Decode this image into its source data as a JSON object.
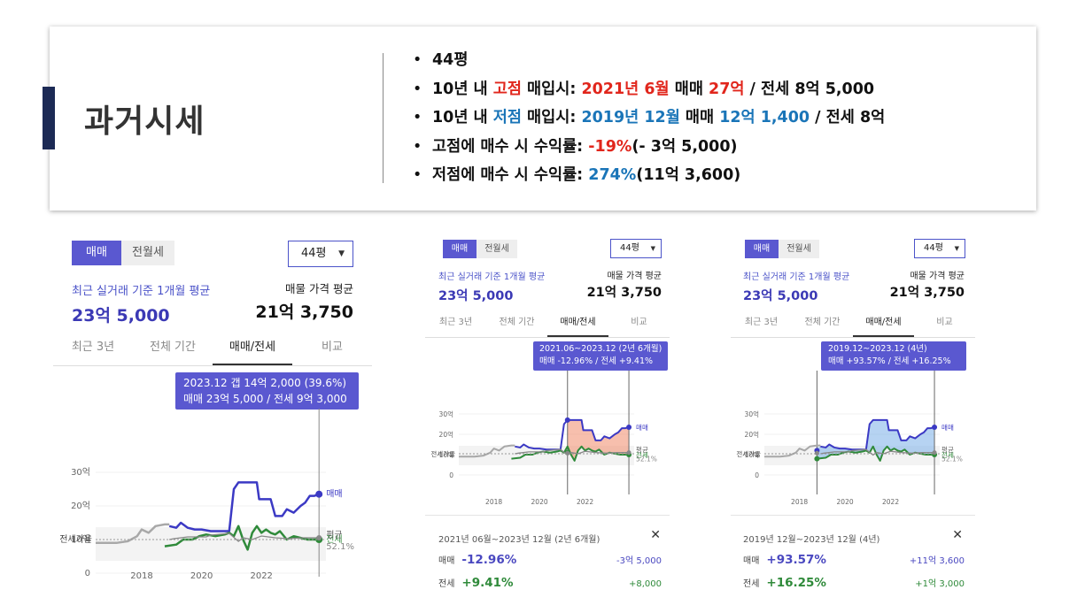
{
  "header": {
    "title": "과거시세",
    "bullets": {
      "b1": "44평",
      "b2": {
        "a": "10년 내 ",
        "b": "고점",
        "c": " 매입시: ",
        "d": "2021년 6월",
        "e": " 매매 ",
        "f": "27억",
        "g": " / 전세 8억 5,000"
      },
      "b3": {
        "a": "10년 내 ",
        "b": "저점",
        "c": " 매입시: ",
        "d": "2019년 12월",
        "e": " 매매 ",
        "f": "12억 1,400",
        "g": " / 전세 8억"
      },
      "b4": {
        "a": "고점에 매수 시 수익률: ",
        "b": "-19%",
        "c": "(- 3억 5,000)"
      },
      "b5": {
        "a": "저점에 매수 시 수익률: ",
        "b": "274%",
        "c": "(11억 3,600)"
      }
    }
  },
  "panels": [
    {
      "toggle": [
        "매매",
        "전월세"
      ],
      "dropdown": "44평",
      "recent_label": "최근 실거래 기준 1개월 평균",
      "recent_value": "23억 5,000",
      "listing_label": "매물 가격 평균",
      "listing_value": "21억 3,750",
      "tabs": [
        "최근 3년",
        "전체 기간",
        "매매/전세",
        "비교"
      ],
      "tooltip": {
        "line1": "2023.12  갭 14억 2,000 (39.6%)",
        "line2": "매매 23억 5,000 / 전세 9억 3,000"
      },
      "chart": {
        "y_ticks": [
          "30억",
          "20억",
          "10억",
          "0"
        ],
        "x_ticks": [
          "2018",
          "2020",
          "2022"
        ],
        "label_sale": "매매",
        "label_jeonse": "전세",
        "ratio_label": "전세가율",
        "avg_label": "평균",
        "avg_value": "52.1%"
      }
    },
    {
      "toggle": [
        "매매",
        "전월세"
      ],
      "dropdown": "44평",
      "recent_label": "최근 실거래 기준 1개월 평균",
      "recent_value": "23억 5,000",
      "listing_label": "매물 가격 평균",
      "listing_value": "21억 3,750",
      "tabs": [
        "최근 3년",
        "전체 기간",
        "매매/전세",
        "비교"
      ],
      "tooltip": {
        "line1": "2021.06~2023.12 (2년 6개월)",
        "line2": "매매 -12.96%  /  전세 +9.41%"
      },
      "chart": {
        "y_ticks": [
          "30억",
          "20억",
          "10억",
          "0"
        ],
        "x_ticks": [
          "2018",
          "2020",
          "2022"
        ],
        "label_sale": "매매",
        "label_jeonse": "전세",
        "ratio_label": "전세가율",
        "avg_label": "평균",
        "avg_value": "52.1%",
        "range_fill": "#f08a6a"
      },
      "summary": {
        "range": "2021년 06월~2023년 12월 (2년 6개월)",
        "close": "✕",
        "rows": [
          {
            "key": "매매",
            "pct": "-12.96%",
            "amt": "-3억 5,000"
          },
          {
            "key": "전세",
            "pct": "+9.41%",
            "amt": "+8,000"
          }
        ]
      }
    },
    {
      "toggle": [
        "매매",
        "전월세"
      ],
      "dropdown": "44평",
      "recent_label": "최근 실거래 기준 1개월 평균",
      "recent_value": "23억 5,000",
      "listing_label": "매물 가격 평균",
      "listing_value": "21억 3,750",
      "tabs": [
        "최근 3년",
        "전체 기간",
        "매매/전세",
        "비교"
      ],
      "tooltip": {
        "line1": "2019.12~2023.12 (4년)",
        "line2": "매매 +93.57%  /  전세 +16.25%"
      },
      "chart": {
        "y_ticks": [
          "30억",
          "20억",
          "10억",
          "0"
        ],
        "x_ticks": [
          "2018",
          "2020",
          "2022"
        ],
        "label_sale": "매매",
        "label_jeonse": "전세",
        "ratio_label": "전세가율",
        "avg_label": "평균",
        "avg_value": "52.1%",
        "range_fill": "#7aaee8"
      },
      "summary": {
        "range": "2019년 12월~2023년 12월 (4년)",
        "close": "✕",
        "rows": [
          {
            "key": "매매",
            "pct": "+93.57%",
            "amt": "+11억 3,600"
          },
          {
            "key": "전세",
            "pct": "+16.25%",
            "amt": "+1억 3,000"
          }
        ]
      }
    }
  ]
}
